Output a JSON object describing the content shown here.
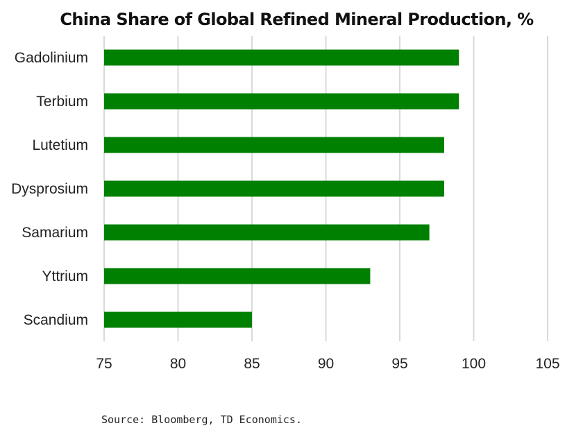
{
  "chart_data": {
    "type": "bar",
    "orientation": "horizontal",
    "title": "China Share of Global Refined Mineral Production, %",
    "categories": [
      "Gadolinium",
      "Terbium",
      "Lutetium",
      "Dysprosium",
      "Samarium",
      "Yttrium",
      "Scandium"
    ],
    "values": [
      99,
      99,
      98,
      98,
      97,
      93,
      85
    ],
    "xlim": [
      75,
      105
    ],
    "xticks": [
      "75",
      "80",
      "85",
      "90",
      "95",
      "100",
      "105"
    ],
    "grid": "vertical",
    "bar_color": "#008000",
    "gridline_color": "#d9d9d9",
    "source": "Source: Bloomberg, TD Economics."
  }
}
